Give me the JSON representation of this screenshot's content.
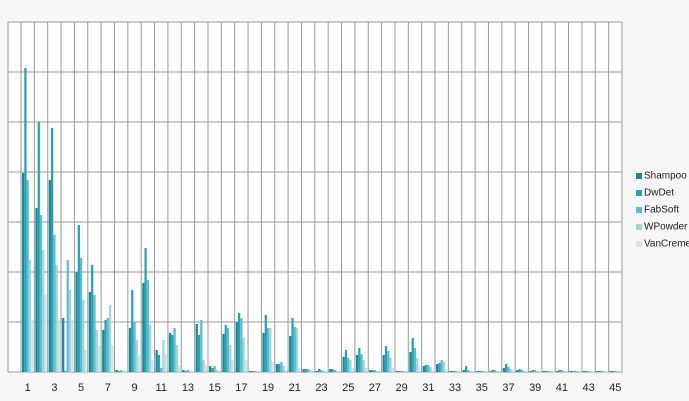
{
  "chart_data": {
    "type": "bar",
    "categories": [
      1,
      null,
      3,
      null,
      5,
      null,
      7,
      null,
      9,
      null,
      11,
      null,
      13,
      null,
      15,
      null,
      17,
      null,
      19,
      null,
      21,
      null,
      23,
      null,
      25,
      null,
      27,
      null,
      29,
      null,
      31,
      null,
      33,
      null,
      35,
      null,
      37,
      null,
      39,
      null,
      41,
      null,
      43,
      null,
      45
    ],
    "series": [
      {
        "name": "Shampoo",
        "color": "#1b8a94",
        "values": [
          3.98,
          3.28,
          3.84,
          1.08,
          2.0,
          1.6,
          0.84,
          0.04,
          0.88,
          1.78,
          0.44,
          0.78,
          0.04,
          0.96,
          0.12,
          0.76,
          1.0,
          0.02,
          0.78,
          0.16,
          0.72,
          0.06,
          0.02,
          0.06,
          0.3,
          0.34,
          0.04,
          0.34,
          0.02,
          0.4,
          0.12,
          0.16,
          0.02,
          0.04,
          0.02,
          0.02,
          0.08,
          0.04,
          0.02,
          0.02,
          0.02,
          0.02,
          0.02,
          0.02,
          0.02
        ]
      },
      {
        "name": "DwDet",
        "color": "#27a2b4",
        "values": [
          6.08,
          5.0,
          4.88,
          0.02,
          2.94,
          2.14,
          1.04,
          0.02,
          1.64,
          2.48,
          0.34,
          0.74,
          0.02,
          0.74,
          0.08,
          0.94,
          1.18,
          0.02,
          1.14,
          0.16,
          1.08,
          0.06,
          0.06,
          0.06,
          0.44,
          0.48,
          0.04,
          0.52,
          0.02,
          0.68,
          0.14,
          0.18,
          0.02,
          0.12,
          0.02,
          0.04,
          0.16,
          0.06,
          0.04,
          0.02,
          0.04,
          0.02,
          0.02,
          0.02,
          0.02
        ]
      },
      {
        "name": "FabSoft",
        "color": "#5bbdcc",
        "values": [
          3.84,
          3.14,
          2.74,
          2.24,
          2.28,
          1.54,
          1.08,
          0.04,
          1.0,
          1.84,
          0.08,
          0.88,
          0.04,
          1.04,
          0.12,
          0.88,
          1.08,
          0.02,
          0.88,
          0.2,
          0.9,
          0.06,
          0.04,
          0.04,
          0.28,
          0.36,
          0.04,
          0.42,
          0.02,
          0.48,
          0.14,
          0.24,
          0.02,
          0.04,
          0.02,
          0.04,
          0.1,
          0.04,
          0.04,
          0.02,
          0.04,
          0.02,
          0.02,
          0.02,
          0.02
        ]
      },
      {
        "name": "WPowder",
        "color": "#9dd6dd",
        "values": [
          2.24,
          2.44,
          2.14,
          1.64,
          1.44,
          0.84,
          1.34,
          0.02,
          0.64,
          0.94,
          0.64,
          0.54,
          0.02,
          0.24,
          0.04,
          0.54,
          0.68,
          0.02,
          0.88,
          0.12,
          0.88,
          0.04,
          0.02,
          0.02,
          0.24,
          0.24,
          0.02,
          0.28,
          0.02,
          0.28,
          0.1,
          0.2,
          0.02,
          0.02,
          0.02,
          0.02,
          0.06,
          0.02,
          0.02,
          0.02,
          0.02,
          0.02,
          0.02,
          0.02,
          0.02
        ]
      },
      {
        "name": "VanCreme",
        "color": "#cfe6e8",
        "values": [
          1.04,
          1.54,
          1.04,
          1.04,
          0.44,
          0.54,
          0.54,
          0.02,
          0.34,
          0.24,
          0.34,
          0.14,
          0.02,
          0.14,
          0.02,
          0.24,
          0.24,
          0.02,
          0.2,
          0.04,
          0.08,
          0.02,
          0.02,
          0.02,
          0.08,
          0.08,
          0.02,
          0.08,
          0.02,
          0.06,
          0.04,
          0.06,
          0.02,
          0.02,
          0.02,
          0.02,
          0.04,
          0.02,
          0.02,
          0.02,
          0.02,
          0.02,
          0.02,
          0.02,
          0.02
        ]
      }
    ],
    "ylim": [
      0,
      7
    ],
    "yticks": [
      0,
      1,
      2,
      3,
      4,
      5,
      6,
      7
    ],
    "grid": true,
    "legend": "right"
  }
}
